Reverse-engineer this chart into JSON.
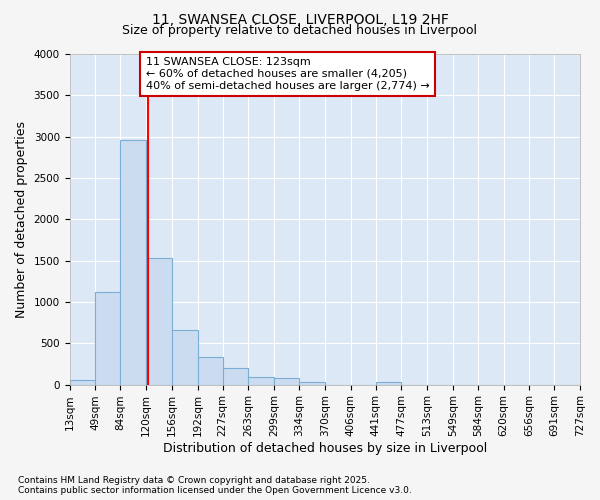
{
  "title1": "11, SWANSEA CLOSE, LIVERPOOL, L19 2HF",
  "title2": "Size of property relative to detached houses in Liverpool",
  "xlabel": "Distribution of detached houses by size in Liverpool",
  "ylabel": "Number of detached properties",
  "bin_edges": [
    13,
    49,
    84,
    120,
    156,
    192,
    227,
    263,
    299,
    334,
    370,
    406,
    441,
    477,
    513,
    549,
    584,
    620,
    656,
    691,
    727
  ],
  "bar_heights": [
    55,
    1120,
    2960,
    1530,
    660,
    330,
    205,
    95,
    75,
    30,
    0,
    0,
    30,
    0,
    0,
    0,
    0,
    0,
    0,
    0
  ],
  "bar_color": "#ccdcf0",
  "bar_edge_color": "#7aaed4",
  "red_line_x": 123,
  "annotation_text": "11 SWANSEA CLOSE: 123sqm\n← 60% of detached houses are smaller (4,205)\n40% of semi-detached houses are larger (2,774) →",
  "annotation_box_color": "#ffffff",
  "annotation_box_edge": "#cc0000",
  "ylim": [
    0,
    4000
  ],
  "yticks": [
    0,
    500,
    1000,
    1500,
    2000,
    2500,
    3000,
    3500,
    4000
  ],
  "footer1": "Contains HM Land Registry data © Crown copyright and database right 2025.",
  "footer2": "Contains public sector information licensed under the Open Government Licence v3.0.",
  "fig_bg_color": "#f5f5f5",
  "plot_bg_color": "#dce8f5",
  "grid_color": "#ffffff",
  "title_fontsize": 10,
  "subtitle_fontsize": 9,
  "axis_label_fontsize": 9,
  "tick_fontsize": 7.5,
  "annotation_fontsize": 8,
  "footer_fontsize": 6.5
}
